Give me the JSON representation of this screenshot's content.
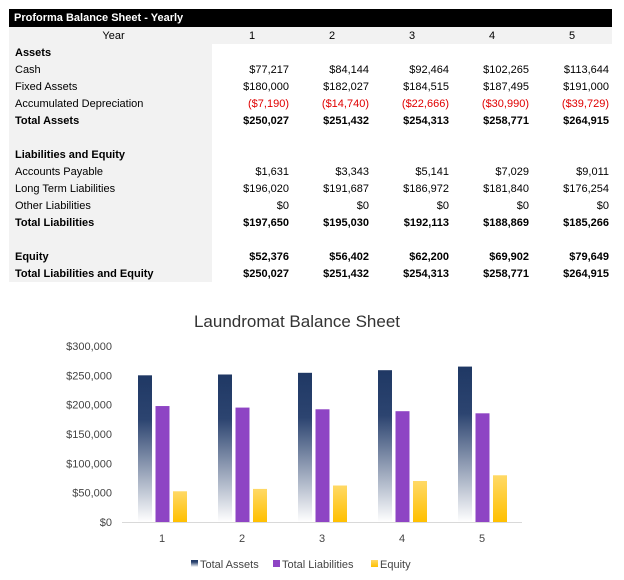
{
  "sheet": {
    "title": "Proforma Balance Sheet - Yearly",
    "year_label": "Year",
    "years": [
      "1",
      "2",
      "3",
      "4",
      "5"
    ],
    "rows": [
      {
        "label": "Assets",
        "values": [],
        "bold": true
      },
      {
        "label": "Cash",
        "values": [
          "$77,217",
          "$84,144",
          "$92,464",
          "$102,265",
          "$113,644"
        ]
      },
      {
        "label": "Fixed Assets",
        "values": [
          "$180,000",
          "$182,027",
          "$184,515",
          "$187,495",
          "$191,000"
        ]
      },
      {
        "label": "Accumulated Depreciation",
        "values": [
          "($7,190)",
          "($14,740)",
          "($22,666)",
          "($30,990)",
          "($39,729)"
        ],
        "negative": true
      },
      {
        "label": "Total Assets",
        "values": [
          "$250,027",
          "$251,432",
          "$254,313",
          "$258,771",
          "$264,915"
        ],
        "bold": true
      },
      {
        "label": "",
        "values": []
      },
      {
        "label": "Liabilities and Equity",
        "values": [],
        "bold": true
      },
      {
        "label": "Accounts Payable",
        "values": [
          "$1,631",
          "$3,343",
          "$5,141",
          "$7,029",
          "$9,011"
        ]
      },
      {
        "label": "Long Term Liabilities",
        "values": [
          "$196,020",
          "$191,687",
          "$186,972",
          "$181,840",
          "$176,254"
        ]
      },
      {
        "label": "Other Liabilities",
        "values": [
          "$0",
          "$0",
          "$0",
          "$0",
          "$0"
        ]
      },
      {
        "label": "Total Liabilities",
        "values": [
          "$197,650",
          "$195,030",
          "$192,113",
          "$188,869",
          "$185,266"
        ],
        "bold": true
      },
      {
        "label": "",
        "values": []
      },
      {
        "label": "Equity",
        "values": [
          "$52,376",
          "$56,402",
          "$62,200",
          "$69,902",
          "$79,649"
        ],
        "bold": true
      },
      {
        "label": "Total Liabilities and Equity",
        "values": [
          "$250,027",
          "$251,432",
          "$254,313",
          "$258,771",
          "$264,915"
        ],
        "bold": true
      }
    ],
    "negative_color": "#e00000"
  },
  "chart_data": {
    "type": "bar",
    "title": "Laundromat Balance Sheet",
    "categories": [
      "1",
      "2",
      "3",
      "4",
      "5"
    ],
    "series": [
      {
        "name": "Total Assets",
        "values": [
          250027,
          251432,
          254313,
          258771,
          264915
        ],
        "color": "#1f3864"
      },
      {
        "name": "Total Liabilities",
        "values": [
          197650,
          195030,
          192113,
          188869,
          185266
        ],
        "color": "#8e44c4"
      },
      {
        "name": "Equity",
        "values": [
          52376,
          56402,
          62200,
          69902,
          79649
        ],
        "color": "#ffc000"
      }
    ],
    "ylim": [
      0,
      300000
    ],
    "yticks": [
      "$0",
      "$50,000",
      "$100,000",
      "$150,000",
      "$200,000",
      "$250,000",
      "$300,000"
    ],
    "grid": false,
    "legend": "bottom"
  }
}
